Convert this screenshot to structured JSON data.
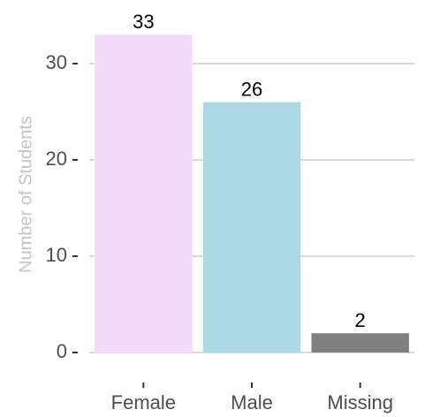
{
  "chart_data": {
    "type": "bar",
    "y_label": "Number of Students",
    "categories": [
      "Female",
      "Male",
      "Missing"
    ],
    "values": [
      33,
      26,
      2
    ],
    "colors": [
      "#f4dafb",
      "#add8e6",
      "#808080"
    ],
    "ylim": [
      0,
      35
    ],
    "yticks": [
      0,
      10,
      20,
      30
    ],
    "grid": true
  }
}
